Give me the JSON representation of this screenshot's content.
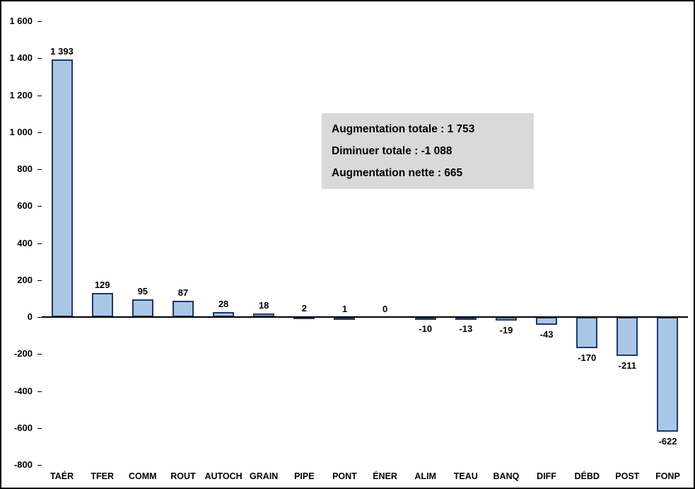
{
  "chart_data": {
    "type": "bar",
    "categories": [
      "TAÉR",
      "TFER",
      "COMM",
      "ROUT",
      "AUTOCH",
      "GRAIN",
      "PIPE",
      "PONT",
      "ÉNER",
      "ALIM",
      "TEAU",
      "BANQ",
      "DIFF",
      "DÉBD",
      "POST",
      "FONP"
    ],
    "values": [
      1393,
      129,
      95,
      87,
      28,
      18,
      2,
      1,
      0,
      -10,
      -13,
      -19,
      -43,
      -170,
      -211,
      -622
    ],
    "value_labels": [
      "1 393",
      "129",
      "95",
      "87",
      "28",
      "18",
      "2",
      "1",
      "0",
      "-10",
      "-13",
      "-19",
      "-43",
      "-170",
      "-211",
      "-622"
    ],
    "title": "",
    "xlabel": "",
    "ylabel": "",
    "ylim": [
      -800,
      1600
    ],
    "ytick_step": 200,
    "ytick_labels": [
      "1 600",
      "1 400",
      "1 200",
      "1 000",
      "800",
      "600",
      "400",
      "200",
      "0",
      "-200",
      "-400",
      "-600",
      "-800"
    ],
    "grid": false,
    "legend": "none",
    "colors": {
      "bar_fill": "#A9C7E7",
      "bar_border": "#1F3864",
      "axis": "#000000",
      "annotation_background": "#D9D9D9",
      "frame_border": "#000000"
    },
    "annotation": {
      "lines": [
        "Augmentation totale : 1 753",
        "Diminuer totale : -1 088",
        "Augmentation nette : 665"
      ]
    }
  }
}
